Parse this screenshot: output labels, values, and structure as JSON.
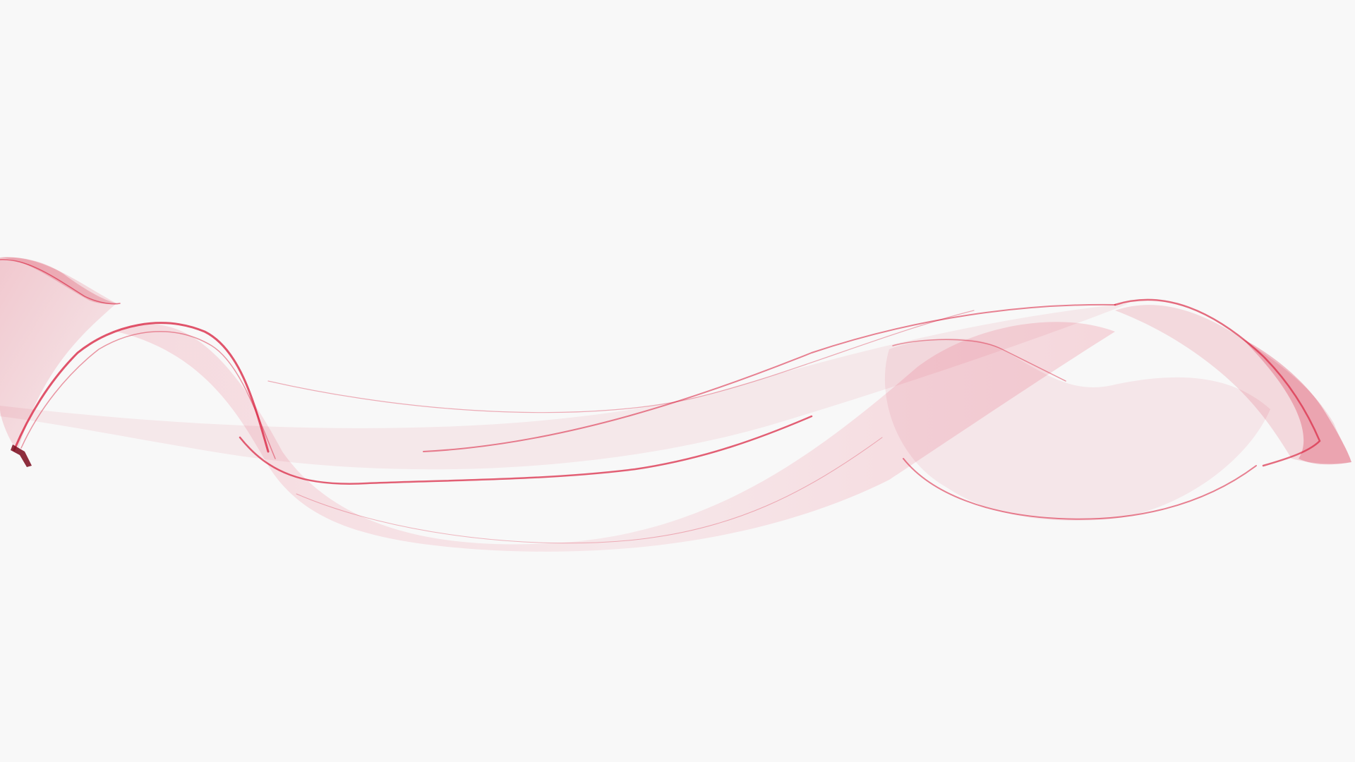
{
  "scene": {
    "background_color": "#f8f8f8",
    "ribbon_color": "#d81e3c",
    "ribbon_dark_color": "#a0102a",
    "ribbon_light_color": "#f2b8c4"
  }
}
